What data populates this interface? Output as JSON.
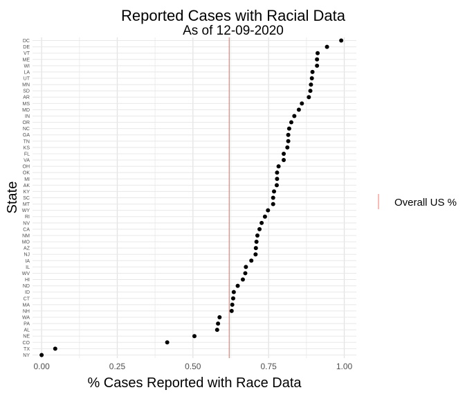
{
  "chart_data": {
    "type": "scatter",
    "title": "Reported Cases with Racial Data",
    "subtitle": "As of 12-09-2020",
    "xlabel": "% Cases Reported with Race Data",
    "ylabel": "State",
    "xlim": [
      -0.03,
      1.04
    ],
    "xticks": [
      "0.00",
      "0.25",
      "0.50",
      "0.75",
      "1.00"
    ],
    "xtick_values": [
      0,
      0.25,
      0.5,
      0.75,
      1.0
    ],
    "grid": true,
    "legend_position": "right",
    "reference_line": {
      "label": "Overall US %",
      "value": 0.62,
      "color": "#f8766d"
    },
    "point_color": "#000000",
    "categories": [
      "NY",
      "TX",
      "CO",
      "NE",
      "AL",
      "PA",
      "WA",
      "NH",
      "MA",
      "CT",
      "ID",
      "ND",
      "HI",
      "WV",
      "IL",
      "IA",
      "NJ",
      "AZ",
      "MO",
      "NM",
      "CA",
      "NV",
      "RI",
      "WY",
      "MT",
      "SC",
      "KY",
      "AK",
      "MI",
      "OK",
      "OH",
      "VA",
      "FL",
      "KS",
      "TN",
      "GA",
      "NC",
      "OR",
      "IN",
      "MD",
      "MS",
      "AR",
      "SD",
      "MN",
      "UT",
      "LA",
      "WI",
      "ME",
      "VT",
      "DE",
      "DC"
    ],
    "values": [
      0.0,
      0.045,
      0.415,
      0.505,
      0.58,
      0.583,
      0.588,
      0.628,
      0.63,
      0.633,
      0.635,
      0.648,
      0.665,
      0.673,
      0.675,
      0.693,
      0.707,
      0.708,
      0.71,
      0.713,
      0.72,
      0.727,
      0.738,
      0.748,
      0.765,
      0.765,
      0.768,
      0.777,
      0.778,
      0.778,
      0.783,
      0.8,
      0.8,
      0.812,
      0.815,
      0.815,
      0.818,
      0.825,
      0.835,
      0.85,
      0.86,
      0.883,
      0.888,
      0.89,
      0.893,
      0.895,
      0.91,
      0.91,
      0.912,
      0.943,
      0.99
    ]
  }
}
